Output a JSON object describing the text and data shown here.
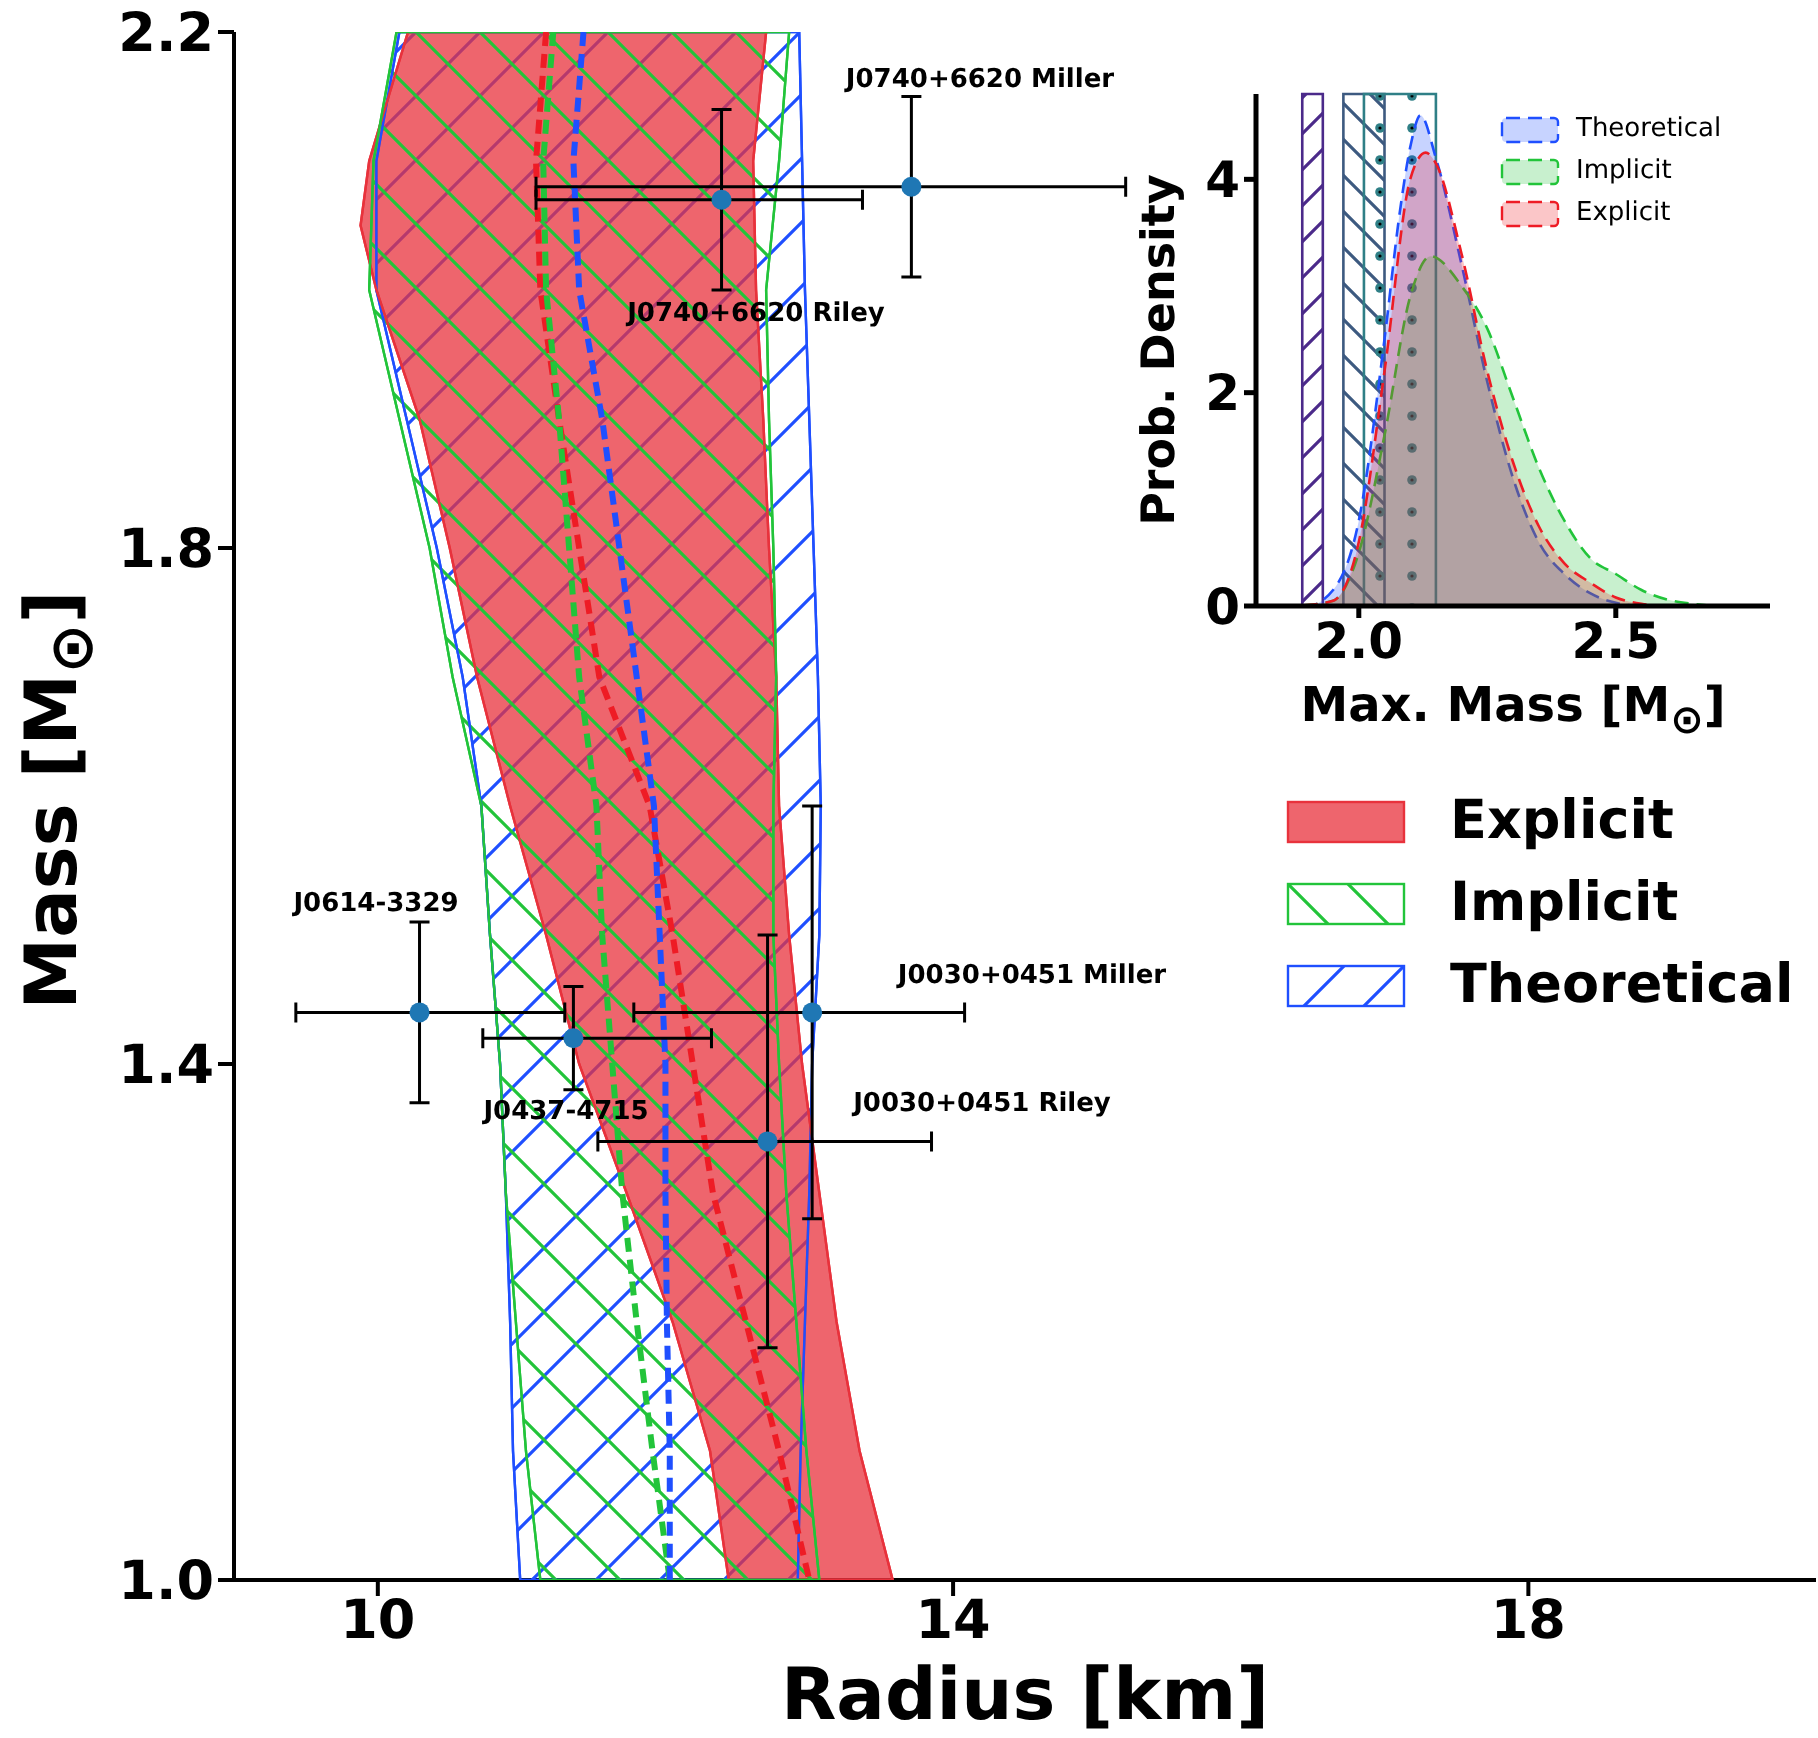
{
  "chart_data": [
    {
      "type": "area",
      "xlabel": "Radius [km]",
      "ylabel": "Mass [M$_{⊙}$]",
      "xlim": [
        9,
        20
      ],
      "xticks": [
        10,
        14,
        18
      ],
      "ylim": [
        1,
        2.2
      ],
      "yticks": [
        {
          "value": 1,
          "label": "1.0"
        },
        1.4,
        1.8,
        2.2
      ],
      "legend": "right",
      "series": [
        {
          "name": "Explicit",
          "color": "#e8323c",
          "x": [
            10.21,
            9.94,
            9.88,
            9.99,
            10.29,
            10.5,
            10.69,
            10.92,
            11.17,
            11.4,
            11.73,
            12.05,
            12.31,
            12.44,
            13.58,
            13.35,
            13.19,
            13.07,
            12.95,
            12.86,
            12.79,
            12.77,
            12.72,
            12.68,
            12.63,
            12.61,
            12.7
          ],
          "values": [
            2.2,
            2.1,
            2.05,
            2.0,
            1.9,
            1.8,
            1.7,
            1.6,
            1.5,
            1.4,
            1.3,
            1.2,
            1.1,
            1.0,
            1.0,
            1.1,
            1.2,
            1.3,
            1.4,
            1.5,
            1.6,
            1.7,
            1.8,
            1.9,
            2.0,
            2.1,
            2.2
          ]
        },
        {
          "name": "Implicit",
          "color": "#22c43a",
          "x": [
            10.13,
            9.97,
            9.94,
            10.15,
            10.36,
            10.52,
            10.72,
            10.78,
            10.85,
            10.89,
            10.96,
            11.03,
            11.13,
            13.07,
            12.98,
            12.91,
            12.84,
            12.79,
            12.75,
            12.75,
            12.77,
            12.75,
            12.72,
            12.7,
            12.79,
            12.86
          ],
          "values": [
            2.2,
            2.1,
            2.0,
            1.9,
            1.8,
            1.7,
            1.6,
            1.5,
            1.4,
            1.3,
            1.2,
            1.1,
            1.0,
            1.0,
            1.1,
            1.2,
            1.3,
            1.4,
            1.5,
            1.6,
            1.7,
            1.8,
            1.9,
            2.0,
            2.1,
            2.2
          ]
        },
        {
          "name": "Theoretical",
          "color": "#1f4fff",
          "x": [
            10.15,
            9.99,
            9.99,
            10.2,
            10.41,
            10.59,
            10.72,
            10.78,
            10.85,
            10.89,
            10.92,
            10.94,
            10.99,
            12.92,
            12.94,
            12.97,
            13.0,
            13.02,
            13.07,
            13.08,
            13.06,
            13.03,
            13.0,
            12.97,
            12.95,
            12.93
          ],
          "values": [
            2.2,
            2.1,
            2.0,
            1.9,
            1.8,
            1.7,
            1.6,
            1.5,
            1.4,
            1.3,
            1.2,
            1.1,
            1.0,
            1.0,
            1.1,
            1.2,
            1.3,
            1.4,
            1.5,
            1.6,
            1.7,
            1.8,
            1.9,
            2.0,
            2.1,
            2.2
          ]
        },
        {
          "type": "line",
          "color": "#ee1c25",
          "line_style": "dashed",
          "x": [
            11.17,
            11.1,
            11.13,
            11.26,
            11.4,
            11.54,
            11.89,
            12.05,
            12.19,
            12.33,
            12.56,
            12.79,
            13.0
          ],
          "values": [
            2.2,
            2.1,
            2.0,
            1.9,
            1.8,
            1.7,
            1.6,
            1.5,
            1.4,
            1.3,
            1.2,
            1.1,
            1.0
          ]
        },
        {
          "type": "line",
          "color": "#22c43a",
          "line_style": "dashed",
          "x": [
            11.22,
            11.15,
            11.17,
            11.26,
            11.33,
            11.4,
            11.52,
            11.56,
            11.63,
            11.7,
            11.8,
            11.91,
            12.03
          ],
          "values": [
            2.2,
            2.1,
            2.0,
            1.9,
            1.8,
            1.7,
            1.6,
            1.5,
            1.4,
            1.3,
            1.2,
            1.1,
            1.0
          ]
        },
        {
          "type": "line",
          "color": "#1f4fff",
          "line_style": "dashed",
          "x": [
            11.43,
            11.36,
            11.4,
            11.56,
            11.68,
            11.8,
            11.92,
            11.96,
            12.0,
            12.0,
            12.01,
            12.03,
            12.03
          ],
          "values": [
            2.2,
            2.1,
            2.0,
            1.9,
            1.8,
            1.7,
            1.6,
            1.5,
            1.4,
            1.3,
            1.2,
            1.1,
            1.0
          ]
        },
        {
          "type": "scatter",
          "color": "#1f77b4",
          "marker": "circle",
          "x": [
            13.71,
            12.39,
            10.29,
            11.36,
            13.02,
            12.71
          ],
          "values": [
            2.08,
            2.07,
            1.44,
            1.42,
            1.44,
            1.34
          ],
          "xerrors": [
            [
              11.1,
              15.2
            ],
            [
              11.1,
              13.37
            ],
            [
              9.43,
              11.3
            ],
            [
              10.73,
              12.32
            ],
            [
              11.78,
              14.08
            ],
            [
              11.53,
              13.85
            ]
          ],
          "errors": [
            [
              2.01,
              2.15
            ],
            [
              2.0,
              2.14
            ],
            [
              1.37,
              1.51
            ],
            [
              1.38,
              1.46
            ],
            [
              1.28,
              1.6
            ],
            [
              1.18,
              1.5
            ]
          ]
        }
      ],
      "annotations": [
        "J0740+6620 Miller",
        "J0740+6620 Riley",
        "J0614-3329",
        "J0437-4715",
        "J0030+0451 Miller",
        "J0030+0451 Riley"
      ]
    },
    {
      "type": "area",
      "xlabel": "Max. Mass [M$_{⊙}$]",
      "ylabel": "Prob. Density",
      "xlim": [
        1.8,
        2.8
      ],
      "xticks": [
        {
          "value": 2,
          "label": "2.0"
        },
        2.5
      ],
      "ylim": [
        0,
        4.8
      ],
      "yticks": [
        0,
        2,
        4
      ],
      "legend": "top right",
      "line_style": "dashed",
      "series": [
        {
          "name": "Theoretical",
          "color": "#1f4fff",
          "x": [
            1.85,
            1.9,
            1.95,
            2.0,
            2.05,
            2.08,
            2.1,
            2.12,
            2.15,
            2.2,
            2.25,
            2.3,
            2.35,
            2.4,
            2.45,
            2.5,
            2.55,
            2.6
          ],
          "values": [
            0,
            0,
            0.15,
            0.8,
            2.5,
            3.7,
            4.3,
            4.6,
            4.2,
            3.2,
            2.1,
            1.2,
            0.6,
            0.3,
            0.12,
            0.03,
            0,
            0
          ]
        },
        {
          "name": "Implicit",
          "color": "#22c43a",
          "x": [
            1.85,
            1.9,
            1.95,
            2.0,
            2.05,
            2.1,
            2.14,
            2.2,
            2.25,
            2.3,
            2.35,
            2.4,
            2.45,
            2.5,
            2.55,
            2.6,
            2.65,
            2.7,
            2.75
          ],
          "values": [
            0,
            0.01,
            0.05,
            0.5,
            1.6,
            2.9,
            3.28,
            3.0,
            2.6,
            1.95,
            1.3,
            0.8,
            0.45,
            0.3,
            0.15,
            0.06,
            0.02,
            0,
            0
          ]
        },
        {
          "name": "Explicit",
          "color": "#ee1c25",
          "x": [
            1.85,
            1.9,
            1.95,
            2.0,
            2.05,
            2.1,
            2.13,
            2.15,
            2.2,
            2.25,
            2.3,
            2.35,
            2.4,
            2.45,
            2.5,
            2.55,
            2.6,
            2.65
          ],
          "values": [
            0,
            0.01,
            0.05,
            0.6,
            2.2,
            4.0,
            4.25,
            4.15,
            3.3,
            2.2,
            1.35,
            0.75,
            0.4,
            0.22,
            0.08,
            0.02,
            0,
            0
          ]
        }
      ],
      "bands": [
        {
          "axis": "x",
          "from": 1.89,
          "to": 1.93,
          "color": "#4b2a8a"
        },
        {
          "axis": "x",
          "from": 1.97,
          "to": 2.05,
          "color": "#3d5a80"
        },
        {
          "axis": "x",
          "from": 2.01,
          "to": 2.15,
          "color": "#2f7f86"
        }
      ]
    }
  ]
}
